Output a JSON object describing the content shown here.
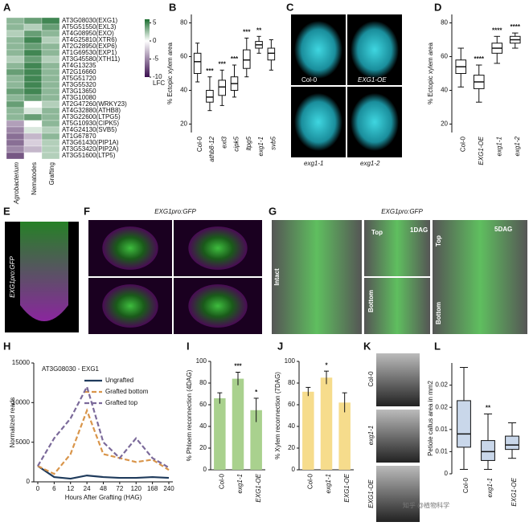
{
  "chart_data": [
    {
      "type": "heatmap",
      "label": "A",
      "columns": [
        "Agrobacterium",
        "Nematodes",
        "Grafting"
      ],
      "rows": [
        "AT3G08030(EXG1)",
        "AT5G51550(EXL3)",
        "AT4G08950(EXO)",
        "AT4G25810(XTR6)",
        "AT2G28950(EXP6)",
        "AT1G69530(EXP1)",
        "AT3G45580(XTH11)",
        "AT4G13235",
        "AT2G16660",
        "AT5G51720",
        "AT3G55320",
        "AT3G13650",
        "AT3G10080",
        "AT2G47260(WRKY23)",
        "AT4G32880(ATHB8)",
        "AT3G22600(LTPG5)",
        "AT5G10930(CIPK5)",
        "AT4G24130(SVB5)",
        "AT1G67870",
        "AT3G61430(PIP1A)",
        "AT3G53420(PIP2A)",
        "AT3G51600(LTP5)"
      ],
      "values": [
        [
          3,
          4,
          5
        ],
        [
          3,
          2,
          4
        ],
        [
          2,
          4,
          3
        ],
        [
          3,
          5,
          2
        ],
        [
          3,
          4,
          3
        ],
        [
          3,
          5,
          3
        ],
        [
          2,
          4,
          2
        ],
        [
          3,
          5,
          3
        ],
        [
          4,
          5,
          3
        ],
        [
          3,
          5,
          3
        ],
        [
          3,
          5,
          3
        ],
        [
          4,
          5,
          3
        ],
        [
          3,
          4,
          3
        ],
        [
          4,
          0,
          2
        ],
        [
          3,
          1,
          3
        ],
        [
          3,
          4,
          3
        ],
        [
          -4,
          0,
          3
        ],
        [
          -5,
          1,
          2
        ],
        [
          -6,
          -3,
          3
        ],
        [
          -6,
          -2,
          2
        ],
        [
          -5,
          -3,
          2
        ],
        [
          -7,
          0,
          2
        ]
      ],
      "clim": [
        -10,
        6
      ],
      "cticks": [
        5,
        0,
        -5,
        -10
      ],
      "clabel": "LFC",
      "colors": {
        "low": "#3b0f4f",
        "mid": "#ffffff",
        "high": "#1b6e30"
      }
    },
    {
      "type": "box",
      "label": "B",
      "ylabel": "% Ectopic xylem area",
      "categories": [
        "Col-0",
        "athb8-12",
        "exl3",
        "cipk5",
        "ltpg5",
        "exg1-1",
        "svb5"
      ],
      "boxes": [
        {
          "min": 45,
          "q1": 50,
          "median": 57,
          "q3": 62,
          "max": 68
        },
        {
          "min": 28,
          "q1": 33,
          "median": 36,
          "q3": 40,
          "max": 48
        },
        {
          "min": 31,
          "q1": 37,
          "median": 42,
          "q3": 46,
          "max": 52
        },
        {
          "min": 36,
          "q1": 40,
          "median": 44,
          "q3": 48,
          "max": 55
        },
        {
          "min": 48,
          "q1": 53,
          "median": 58,
          "q3": 64,
          "max": 71
        },
        {
          "min": 62,
          "q1": 65,
          "median": 67,
          "q3": 69,
          "max": 72
        },
        {
          "min": 52,
          "q1": 58,
          "median": 62,
          "q3": 65,
          "max": 70
        }
      ],
      "significance": [
        null,
        "***",
        "***",
        "***",
        "***",
        "**",
        null
      ],
      "ylim": [
        15,
        85
      ],
      "yticks": [
        20,
        40,
        60,
        80
      ],
      "color": "#ffffff"
    },
    {
      "type": "box",
      "label": "D",
      "ylabel": "% Ectopic xylem area",
      "categories": [
        "Col-0",
        "EXG1-OE",
        "exg1-1",
        "exg1-2"
      ],
      "boxes": [
        {
          "min": 42,
          "q1": 50,
          "median": 54,
          "q3": 58,
          "max": 65
        },
        {
          "min": 33,
          "q1": 41,
          "median": 45,
          "q3": 49,
          "max": 55
        },
        {
          "min": 56,
          "q1": 62,
          "median": 65,
          "q3": 68,
          "max": 72
        },
        {
          "min": 65,
          "q1": 68,
          "median": 70,
          "q3": 72,
          "max": 74
        }
      ],
      "significance": [
        null,
        "****",
        "****",
        "****"
      ],
      "ylim": [
        15,
        85
      ],
      "yticks": [
        20,
        40,
        60,
        80
      ],
      "color": "#ffffff"
    },
    {
      "type": "line",
      "label": "H",
      "title": "AT3G08030 - EXG1",
      "ylabel": "Normalized reads",
      "xlabel": "Hours After Grafting (HAG)",
      "categories": [
        "0",
        "6",
        "12",
        "24",
        "48",
        "72",
        "120",
        "168",
        "240"
      ],
      "series": [
        {
          "name": "Ungrafted",
          "color": "#1f3b5c",
          "dashed": false,
          "values": [
            2000,
            600,
            400,
            800,
            600,
            500,
            500,
            600,
            500
          ]
        },
        {
          "name": "Grafted bottom",
          "color": "#d9954a",
          "dashed": true,
          "values": [
            2000,
            1000,
            3500,
            9000,
            3500,
            3000,
            2500,
            2800,
            1500
          ]
        },
        {
          "name": "Grafted top",
          "color": "#7b6a9a",
          "dashed": true,
          "values": [
            2000,
            5500,
            8000,
            12000,
            5000,
            3000,
            5500,
            3000,
            1800
          ]
        }
      ],
      "ylim": [
        0,
        15000
      ],
      "yticks": [
        0,
        5000,
        10000,
        15000
      ],
      "legend": "top-right"
    },
    {
      "type": "bar",
      "label": "I",
      "ylabel": "% Phloem reconnection (4DAG)",
      "categories": [
        "Col-0",
        "exg1-1",
        "EXG1-OE"
      ],
      "values": [
        66,
        84,
        55
      ],
      "errors": [
        5,
        6,
        11
      ],
      "significance": [
        null,
        "***",
        "*"
      ],
      "ylim": [
        0,
        100
      ],
      "yticks": [
        0,
        20,
        40,
        60,
        80,
        100
      ],
      "color": "#a9d18e"
    },
    {
      "type": "bar",
      "label": "J",
      "ylabel": "% Xylem reconnection (7DAG)",
      "categories": [
        "Col-0",
        "exg1-1",
        "EXG1-OE"
      ],
      "values": [
        72,
        85,
        62
      ],
      "errors": [
        4,
        6,
        9
      ],
      "significance": [
        null,
        "*",
        null
      ],
      "ylim": [
        0,
        100
      ],
      "yticks": [
        0,
        20,
        40,
        60,
        80,
        100
      ],
      "color": "#f6dc8c"
    },
    {
      "type": "box",
      "label": "L",
      "ylabel": "Petiole callus area in mm2",
      "categories": [
        "Col-0",
        "exg1-1",
        "EXG1-OE"
      ],
      "boxes": [
        {
          "min": 0.001,
          "q1": 0.006,
          "median": 0.009,
          "q3": 0.0165,
          "max": 0.024
        },
        {
          "min": 0.001,
          "q1": 0.003,
          "median": 0.005,
          "q3": 0.0075,
          "max": 0.0135
        },
        {
          "min": 0.0035,
          "q1": 0.0055,
          "median": 0.0065,
          "q3": 0.0085,
          "max": 0.0115
        }
      ],
      "significance": [
        null,
        "**",
        null
      ],
      "ylim": [
        0,
        0.025
      ],
      "yticks": [
        0,
        {
          "value": 0.005,
          "label": "0.01"
        },
        0.01,
        {
          "value": 0.015,
          "label": "0.02"
        },
        0.02
      ],
      "color": "#c9d7ea"
    }
  ],
  "images": [
    {
      "label": "C",
      "captions": [
        "Col-0",
        "EXG1-OE",
        "exg1-1",
        "exg1-2"
      ]
    },
    {
      "label": "E",
      "captions": [
        "EXG1pro:GFP"
      ]
    },
    {
      "label": "F",
      "title": "EXG1pro:GFP"
    },
    {
      "label": "G",
      "title": "EXG1pro:GFP",
      "captions": [
        "Intact",
        "Top",
        "1DAG",
        "Bottom",
        "Top",
        "5DAG",
        "Bottom"
      ]
    },
    {
      "label": "K",
      "captions": [
        "Col-0",
        "exg1-1",
        "EXG1-OE"
      ]
    }
  ],
  "watermark": "知乎 @植物科学"
}
